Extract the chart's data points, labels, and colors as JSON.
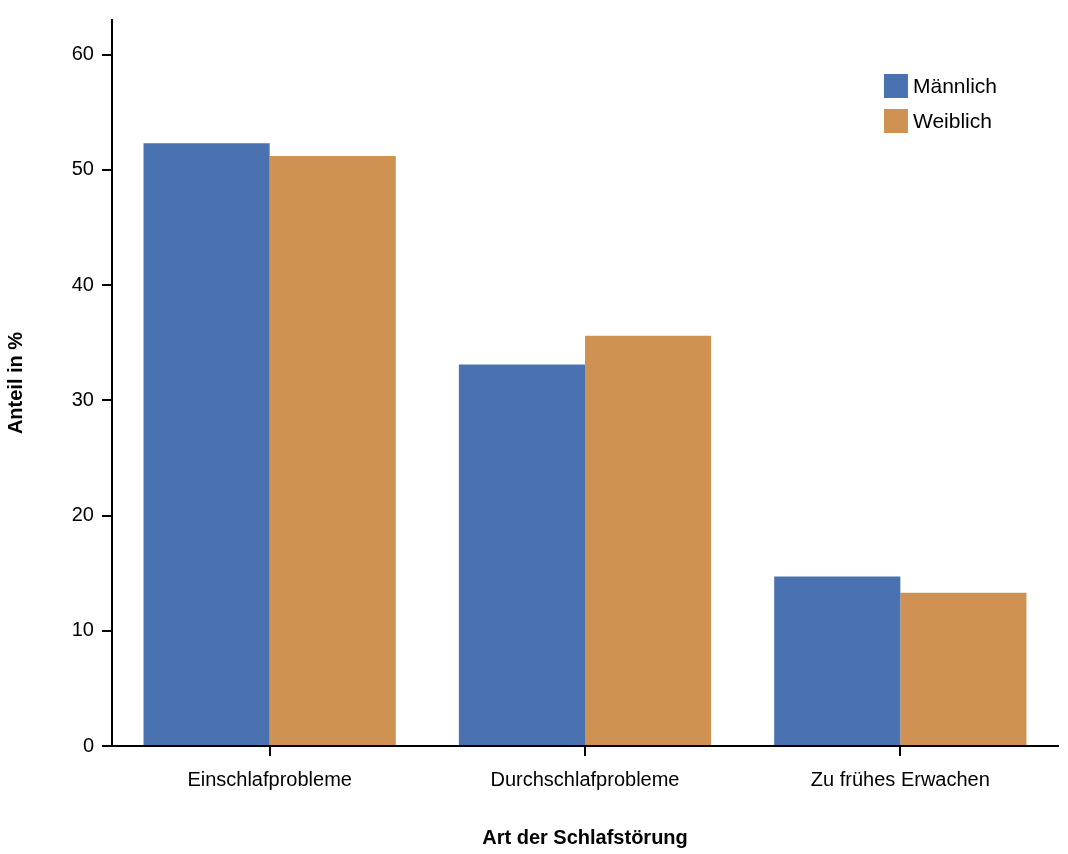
{
  "chart_data": {
    "type": "bar",
    "xlabel": "Art der Schlafstörung",
    "ylabel": "Anteil in %",
    "categories": [
      "Einschlafprobleme",
      "Durchschlafprobleme",
      "Zu frühes Erwachen"
    ],
    "series": [
      {
        "name": "Männlich",
        "color": "#4a72b0",
        "values": [
          52.3,
          33.1,
          14.7
        ]
      },
      {
        "name": "Weiblich",
        "color": "#d09252",
        "values": [
          51.2,
          35.6,
          13.3
        ]
      }
    ],
    "ylim": [
      0,
      63
    ],
    "yticks": [
      0,
      10,
      20,
      30,
      40,
      50,
      60
    ],
    "grid": false,
    "legend": "top right"
  }
}
